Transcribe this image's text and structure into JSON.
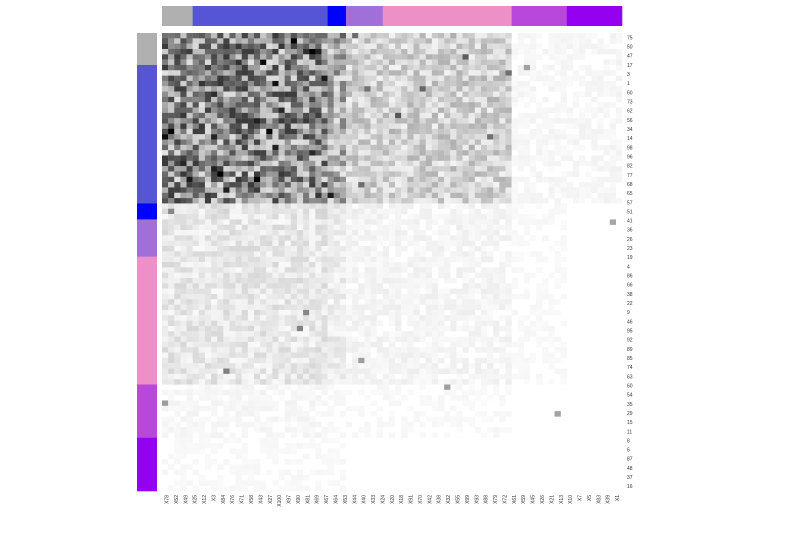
{
  "chart_data": {
    "type": "heatmap",
    "title": "",
    "xlabel": "",
    "ylabel": "",
    "colorscale": [
      "#ffffff",
      "#000000"
    ],
    "legend": "none",
    "grid": false,
    "column_labels": [
      "X78",
      "X52",
      "X49",
      "X25",
      "X12",
      "X3",
      "X84",
      "X76",
      "X71",
      "X58",
      "X43",
      "X27",
      "X100",
      "X97",
      "X90",
      "X81",
      "X69",
      "X67",
      "X64",
      "X53",
      "X44",
      "X40",
      "X33",
      "X24",
      "X20",
      "X18",
      "X91",
      "X70",
      "X42",
      "X38",
      "X32",
      "X55",
      "X99",
      "X93",
      "X88",
      "X79",
      "X72",
      "X61",
      "X59",
      "X45",
      "X26",
      "X21",
      "X13",
      "X10",
      "X7",
      "X5",
      "X83",
      "X39",
      "X1"
    ],
    "row_labels": [
      "75",
      "50",
      "47",
      "17",
      "3",
      "1",
      "60",
      "73",
      "62",
      "56",
      "34",
      "14",
      "98",
      "96",
      "82",
      "77",
      "68",
      "65",
      "57",
      "51",
      "41",
      "36",
      "26",
      "23",
      "19",
      "4",
      "86",
      "66",
      "38",
      "22",
      "9",
      "46",
      "95",
      "92",
      "89",
      "85",
      "74",
      "63",
      "60",
      "54",
      "35",
      "29",
      "15",
      "11",
      "8",
      "6",
      "87",
      "48",
      "37",
      "16"
    ],
    "cluster_colors": [
      "#b0b0b0",
      "#5555d5",
      "#0000ff",
      "#a070d8",
      "#ee90c8",
      "#b848dc",
      "#9400f0"
    ],
    "column_clusters": [
      {
        "cluster": 0,
        "count": 5
      },
      {
        "cluster": 1,
        "count": 22
      },
      {
        "cluster": 2,
        "count": 3
      },
      {
        "cluster": 3,
        "count": 6
      },
      {
        "cluster": 4,
        "count": 21
      },
      {
        "cluster": 5,
        "count": 9
      },
      {
        "cluster": 6,
        "count": 9
      }
    ],
    "row_clusters": [
      {
        "cluster": 0,
        "count": 6
      },
      {
        "cluster": 1,
        "count": 26
      },
      {
        "cluster": 2,
        "count": 3
      },
      {
        "cluster": 3,
        "count": 7
      },
      {
        "cluster": 4,
        "count": 24
      },
      {
        "cluster": 5,
        "count": 10
      },
      {
        "cluster": 6,
        "count": 10
      }
    ],
    "grid_size": {
      "columns": 75,
      "rows": 86
    },
    "block_intensity": [
      [
        0.45,
        0.45,
        0.32,
        0.18,
        0.18,
        0.03,
        0.03
      ],
      [
        0.45,
        0.45,
        0.32,
        0.18,
        0.18,
        0.03,
        0.03
      ],
      [
        0.1,
        0.1,
        0.08,
        0.05,
        0.04,
        0.02,
        0.01
      ],
      [
        0.09,
        0.09,
        0.07,
        0.04,
        0.04,
        0.02,
        0.01
      ],
      [
        0.09,
        0.09,
        0.07,
        0.04,
        0.04,
        0.02,
        0.01
      ],
      [
        0.03,
        0.03,
        0.02,
        0.02,
        0.02,
        0.01,
        0.01
      ],
      [
        0.02,
        0.02,
        0.02,
        0.01,
        0.01,
        0.01,
        0.01
      ]
    ]
  }
}
